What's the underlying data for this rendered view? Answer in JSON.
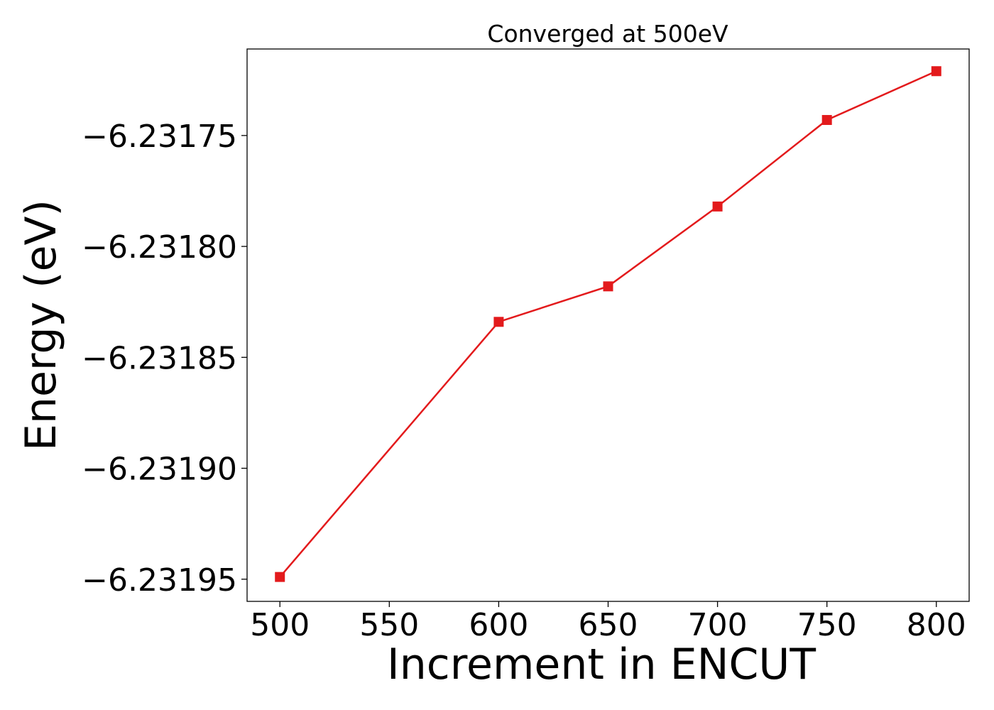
{
  "chart_data": {
    "type": "line",
    "title": "Converged at 500eV",
    "xlabel": "Increment in ENCUT",
    "ylabel": "Energy (eV)",
    "x": [
      500,
      600,
      650,
      700,
      750,
      800
    ],
    "series": [
      {
        "values": [
          -6.231949,
          -6.231834,
          -6.231818,
          -6.231782,
          -6.231743,
          -6.231721
        ],
        "color": "#e31a1c",
        "marker": "square"
      }
    ],
    "xlim": [
      485,
      815
    ],
    "ylim": [
      -6.23196,
      -6.231711
    ],
    "xticks": [
      500,
      550,
      600,
      650,
      700,
      750,
      800
    ],
    "xtick_labels": [
      "500",
      "550",
      "600",
      "650",
      "700",
      "750",
      "800"
    ],
    "yticks": [
      -6.23195,
      -6.2319,
      -6.23185,
      -6.2318,
      -6.23175
    ],
    "ytick_labels": [
      "−6.23195",
      "−6.23190",
      "−6.23185",
      "−6.23180",
      "−6.23175"
    ],
    "grid": false,
    "legend": false
  }
}
